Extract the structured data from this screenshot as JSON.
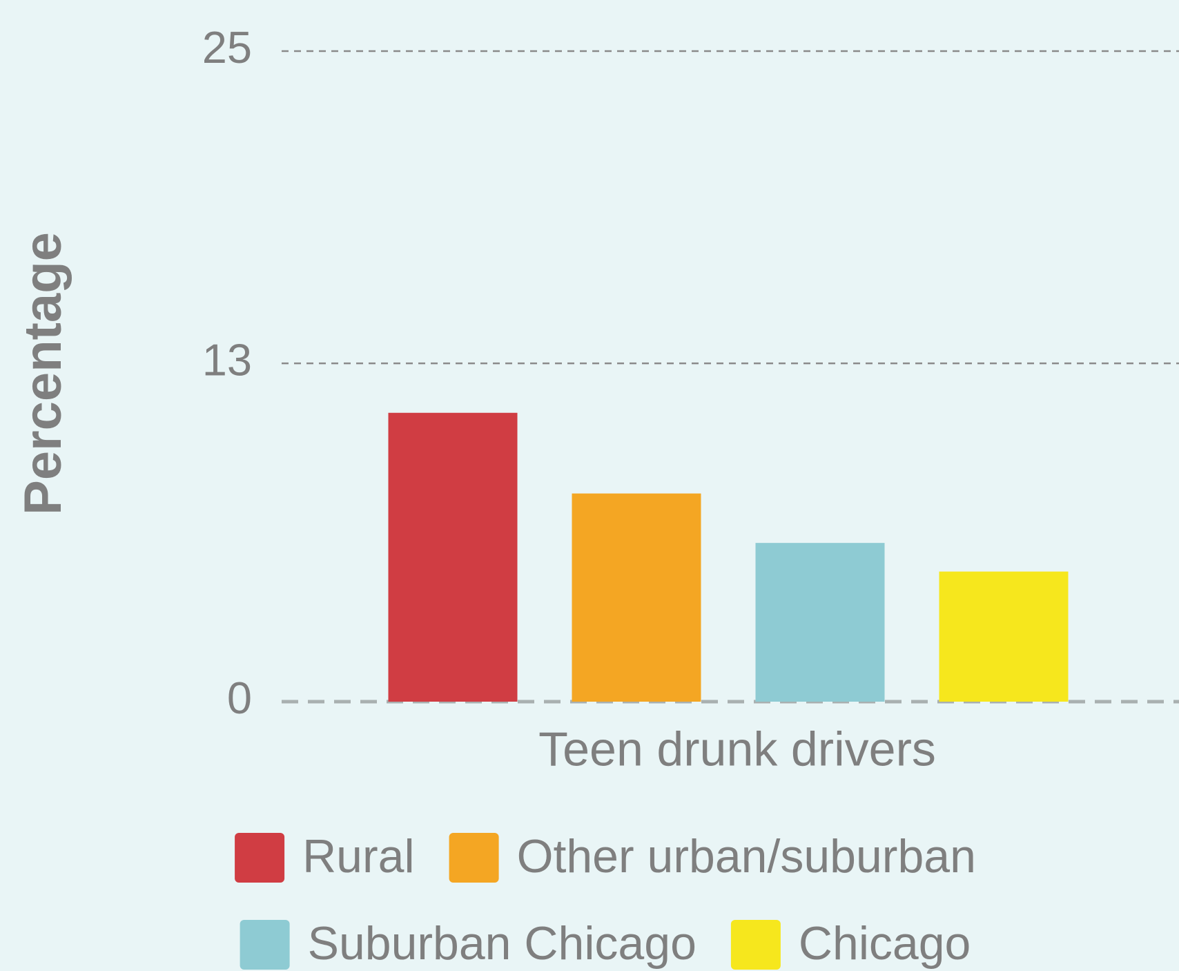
{
  "chart_data": {
    "type": "bar",
    "categories": [
      "Teen drunk drivers"
    ],
    "y_label": "Percentage",
    "series": [
      {
        "name": "Rural",
        "color": "#d03d43",
        "values": [
          11.1
        ]
      },
      {
        "name": "Other urban/suburban",
        "color": "#f4a623",
        "values": [
          8.0
        ]
      },
      {
        "name": "Suburban Chicago",
        "color": "#8ecbd3",
        "values": [
          6.1
        ]
      },
      {
        "name": "Chicago",
        "color": "#f6e71d",
        "values": [
          5.0
        ]
      }
    ],
    "ylim": [
      0,
      25
    ],
    "yticks": [
      0,
      13,
      25
    ],
    "grid": true,
    "legend": "bottom"
  }
}
